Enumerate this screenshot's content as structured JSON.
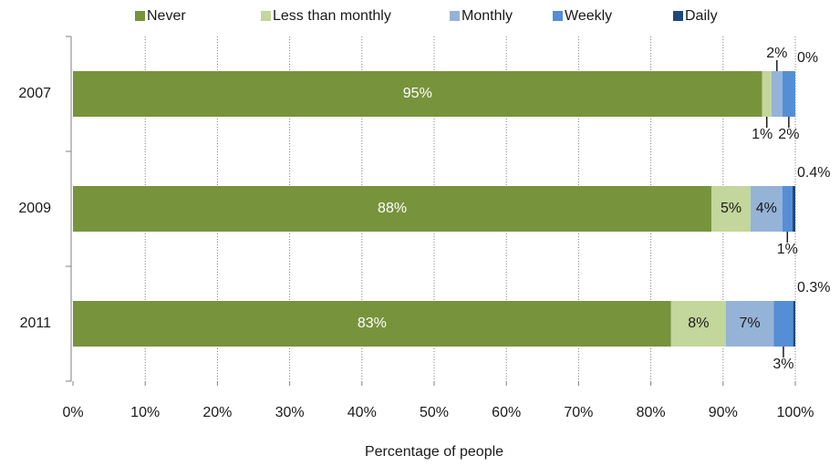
{
  "chart_data": {
    "type": "stacked_bar_horizontal",
    "x_label": "Percentage of people",
    "categories": [
      "2007",
      "2009",
      "2011"
    ],
    "series": [
      {
        "name": "Never",
        "color": "#77933c",
        "values": [
          95.4,
          88.4,
          82.8
        ],
        "value_labels": [
          "95%",
          "88%",
          "83%"
        ]
      },
      {
        "name": "Less than monthly",
        "color": "#c3d69b",
        "values": [
          1.3,
          5.4,
          7.6
        ],
        "value_labels": [
          "1%",
          "5%",
          "8%"
        ]
      },
      {
        "name": "Monthly",
        "color": "#95b3d7",
        "values": [
          1.5,
          4.4,
          6.6
        ],
        "value_labels": [
          "2%",
          "4%",
          "7%"
        ]
      },
      {
        "name": "Weekly",
        "color": "#558ed5",
        "values": [
          1.8,
          1.4,
          2.7
        ],
        "value_labels": [
          "2%",
          "1%",
          "3%"
        ]
      },
      {
        "name": "Daily",
        "color": "#1f497d",
        "values": [
          0,
          0.4,
          0.3
        ],
        "value_labels": [
          "0%",
          "0.4%",
          "0.3%"
        ]
      }
    ],
    "xlim": [
      0,
      100
    ],
    "xticks": [
      {
        "value": 0,
        "label": "0%"
      },
      {
        "value": 10,
        "label": "10%"
      },
      {
        "value": 20,
        "label": "20%"
      },
      {
        "value": 30,
        "label": "30%"
      },
      {
        "value": 40,
        "label": "40%"
      },
      {
        "value": 50,
        "label": "50%"
      },
      {
        "value": 60,
        "label": "60%"
      },
      {
        "value": 70,
        "label": "70%"
      },
      {
        "value": 80,
        "label": "80%"
      },
      {
        "value": 90,
        "label": "90%"
      },
      {
        "value": 100,
        "label": "100%"
      }
    ],
    "grid": true,
    "legend": "top"
  }
}
